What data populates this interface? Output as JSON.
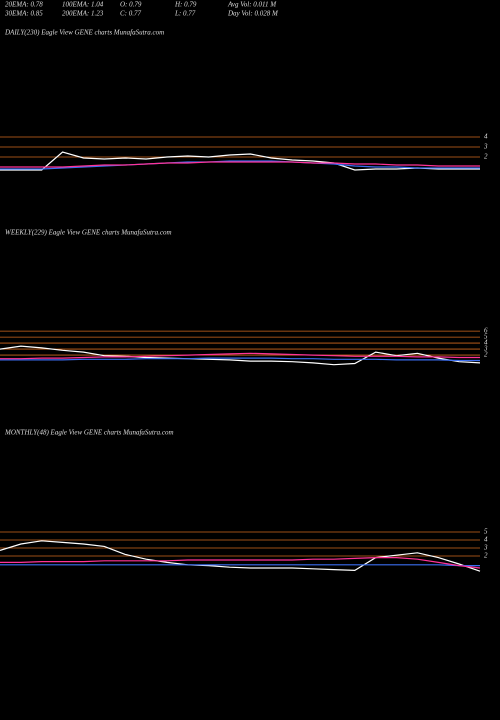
{
  "header": {
    "rows": [
      [
        "20EMA: 0.78",
        "100EMA: 1.04",
        "O: 0.79",
        "H: 0.79",
        "Avg Vol: 0.011 M"
      ],
      [
        "30EMA: 0.85",
        "200EMA: 1.23",
        "C: 0.77",
        "L: 0.77",
        "Day Vol: 0.028 M"
      ]
    ]
  },
  "chart_data": [
    {
      "type": "line",
      "title": "DAILY(230) Eagle   View   GENE charts MunafaSutra.com",
      "ylim": [
        -3.8,
        13.7
      ],
      "yticks": [
        2,
        3,
        4
      ],
      "grid": true,
      "grid_color": "#d2691e",
      "series": [
        {
          "color": "#ffffff",
          "values": [
            0.7,
            0.7,
            0.7,
            2.5,
            1.9,
            1.8,
            1.9,
            1.8,
            2.0,
            2.1,
            2.0,
            2.2,
            2.3,
            1.9,
            1.7,
            1.6,
            1.4,
            0.7,
            0.8,
            0.8,
            0.9,
            0.8,
            0.8,
            0.8
          ]
        },
        {
          "color": "#3a6df0",
          "values": [
            0.8,
            0.8,
            0.8,
            0.9,
            1.0,
            1.1,
            1.2,
            1.3,
            1.4,
            1.5,
            1.5,
            1.6,
            1.6,
            1.6,
            1.5,
            1.4,
            1.3,
            1.1,
            1.0,
            1.0,
            0.9,
            0.9,
            0.9,
            0.9
          ]
        },
        {
          "color": "#ff3399",
          "values": [
            1.0,
            1.0,
            1.0,
            1.0,
            1.1,
            1.2,
            1.2,
            1.3,
            1.4,
            1.4,
            1.5,
            1.5,
            1.5,
            1.5,
            1.5,
            1.4,
            1.4,
            1.3,
            1.3,
            1.2,
            1.2,
            1.1,
            1.1,
            1.1
          ]
        }
      ]
    },
    {
      "type": "line",
      "title": "WEEKLY(229) Eagle   View   GENE charts MunafaSutra.com",
      "ylim": [
        -8,
        21.2
      ],
      "yticks": [
        2,
        3,
        4,
        5,
        6
      ],
      "grid": true,
      "grid_color": "#d2691e",
      "series": [
        {
          "color": "#ffffff",
          "values": [
            3.0,
            3.5,
            3.2,
            2.8,
            2.5,
            1.9,
            1.8,
            1.6,
            1.5,
            1.4,
            1.3,
            1.2,
            1.0,
            1.0,
            0.9,
            0.7,
            0.4,
            0.6,
            2.5,
            1.9,
            2.3,
            1.5,
            0.9,
            0.7
          ]
        },
        {
          "color": "#3a6df0",
          "values": [
            1.2,
            1.2,
            1.2,
            1.2,
            1.3,
            1.3,
            1.3,
            1.4,
            1.4,
            1.4,
            1.5,
            1.5,
            1.5,
            1.5,
            1.4,
            1.4,
            1.3,
            1.3,
            1.3,
            1.2,
            1.2,
            1.2,
            1.1,
            1.1
          ]
        },
        {
          "color": "#ff3399",
          "values": [
            1.4,
            1.4,
            1.5,
            1.5,
            1.6,
            1.7,
            1.7,
            1.8,
            1.9,
            2.0,
            2.1,
            2.2,
            2.3,
            2.2,
            2.1,
            2.0,
            1.9,
            1.8,
            1.8,
            1.8,
            1.7,
            1.7,
            1.6,
            1.6
          ]
        }
      ]
    },
    {
      "type": "line",
      "title": "MONTHLY(48) Eagle   View   GENE charts MunafaSutra.com",
      "ylim": [
        -5.375,
        16.5
      ],
      "yticks": [
        2,
        3,
        4,
        5
      ],
      "grid": true,
      "grid_color": "#d2691e",
      "series": [
        {
          "color": "#ffffff",
          "values": [
            2.7,
            3.5,
            3.9,
            3.7,
            3.5,
            3.2,
            2.2,
            1.6,
            1.2,
            0.9,
            0.8,
            0.6,
            0.5,
            0.5,
            0.5,
            0.4,
            0.3,
            0.2,
            1.8,
            2.1,
            2.4,
            1.8,
            1.0,
            0.1
          ]
        },
        {
          "color": "#3a6df0",
          "values": [
            0.9,
            0.9,
            0.9,
            0.9,
            0.9,
            0.9,
            0.9,
            0.9,
            0.9,
            0.9,
            0.9,
            0.9,
            0.9,
            0.9,
            0.9,
            0.9,
            0.9,
            0.9,
            0.9,
            0.9,
            0.9,
            0.9,
            0.8,
            0.8
          ]
        },
        {
          "color": "#ff3399",
          "values": [
            1.2,
            1.2,
            1.3,
            1.3,
            1.3,
            1.4,
            1.4,
            1.4,
            1.4,
            1.5,
            1.5,
            1.5,
            1.5,
            1.5,
            1.5,
            1.6,
            1.6,
            1.7,
            1.8,
            1.8,
            1.6,
            1.2,
            0.8,
            0.5
          ]
        }
      ]
    }
  ]
}
